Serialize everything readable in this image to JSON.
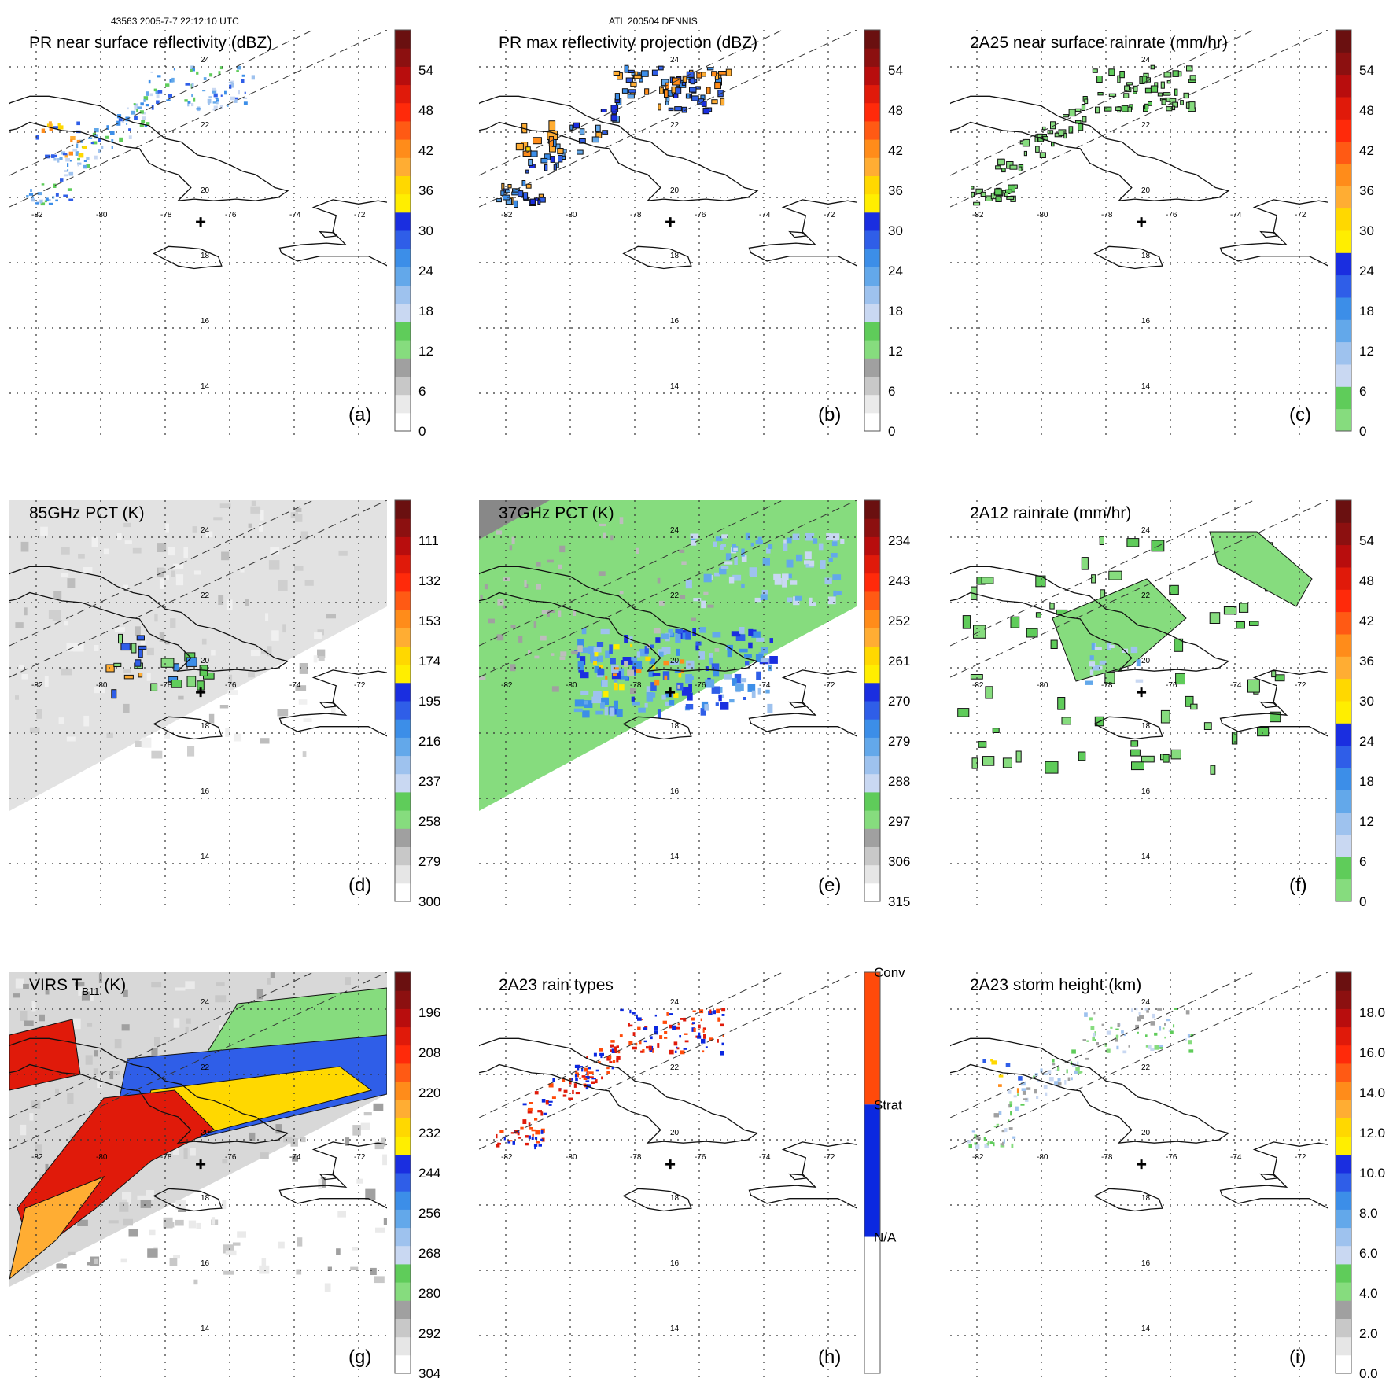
{
  "header": {
    "left": "43563 2005-7-7 22:12:10 UTC",
    "center": "ATL 200504 DENNIS"
  },
  "map": {
    "lon_labels": [
      "-82",
      "-80",
      "-78",
      "-76",
      "-74",
      "-72"
    ],
    "lat_labels": [
      "24",
      "22",
      "20",
      "18",
      "16",
      "14"
    ],
    "storm_center_marker": "cross-icon"
  },
  "panels": [
    {
      "id": "a",
      "title": "PR near surface reflectivity (dBZ)",
      "label": "(a)",
      "colorbar": {
        "ticks": [
          "54",
          "48",
          "42",
          "36",
          "30",
          "24",
          "18",
          "12",
          "6",
          "0"
        ],
        "scale": "reflectivity"
      },
      "field": "pr-swath-cells"
    },
    {
      "id": "b",
      "title": "PR max reflectivity projection (dBZ)",
      "label": "(b)",
      "colorbar": {
        "ticks": [
          "54",
          "48",
          "42",
          "36",
          "30",
          "24",
          "18",
          "12",
          "6",
          "0"
        ],
        "scale": "reflectivity"
      },
      "field": "pr-swath-cells-contoured"
    },
    {
      "id": "c",
      "title": "2A25 near surface rainrate (mm/hr)",
      "label": "(c)",
      "colorbar": {
        "ticks": [
          "54",
          "48",
          "42",
          "36",
          "30",
          "24",
          "18",
          "12",
          "6",
          "0"
        ],
        "scale": "rainrate"
      },
      "field": "pr-swath-green"
    },
    {
      "id": "d",
      "title": "85GHz PCT (K)",
      "label": "(d)",
      "colorbar": {
        "ticks": [
          "111",
          "132",
          "153",
          "174",
          "195",
          "216",
          "237",
          "258",
          "279",
          "300"
        ],
        "scale": "pct"
      },
      "field": "tmi-gray"
    },
    {
      "id": "e",
      "title": "37GHz PCT (K)",
      "label": "(e)",
      "colorbar": {
        "ticks": [
          "234",
          "243",
          "252",
          "261",
          "270",
          "279",
          "288",
          "297",
          "306",
          "315"
        ],
        "scale": "pct"
      },
      "field": "tmi-green"
    },
    {
      "id": "f",
      "title": "2A12 rainrate (mm/hr)",
      "label": "(f)",
      "colorbar": {
        "ticks": [
          "54",
          "48",
          "42",
          "36",
          "30",
          "24",
          "18",
          "12",
          "6",
          "0"
        ],
        "scale": "rainrate"
      },
      "field": "tmi-rain"
    },
    {
      "id": "g",
      "title": "VIRS T",
      "title_sub": "B11",
      "title_tail": " (K)",
      "label": "(g)",
      "colorbar": {
        "ticks": [
          "196",
          "208",
          "220",
          "232",
          "244",
          "256",
          "268",
          "280",
          "292",
          "304"
        ],
        "scale": "pct"
      },
      "field": "virs"
    },
    {
      "id": "h",
      "title": "2A23 rain types",
      "label": "(h)",
      "colorbar": {
        "ticks": [
          "Conv",
          "Strat",
          "N/A"
        ],
        "scale": "types"
      },
      "field": "pr-types"
    },
    {
      "id": "i",
      "title": "2A23 storm height (km)",
      "label": "(i)",
      "colorbar": {
        "ticks": [
          "18.0",
          "16.0",
          "14.0",
          "12.0",
          "10.0",
          "8.0",
          "6.0",
          "4.0",
          "2.0",
          "0.0"
        ],
        "scale": "height"
      },
      "field": "pr-height"
    }
  ],
  "colors": {
    "reflectivity": [
      "#ffffff",
      "#eaeaea",
      "#c8c8c8",
      "#a0a0a0",
      "#86dc7e",
      "#5fcc5a",
      "#c9d8f2",
      "#9ec2ee",
      "#63a8ea",
      "#3c8ee8",
      "#2f5ee8",
      "#1a2ee0",
      "#ffee00",
      "#ffd800",
      "#ffad33",
      "#ff8c1a",
      "#ff5a14",
      "#ff2a0a",
      "#e01a0a",
      "#b80d0d",
      "#8c1010",
      "#6a1010"
    ],
    "rainrate": [
      "#86dc7e",
      "#5fcc5a",
      "#c9d8f2",
      "#9ec2ee",
      "#63a8ea",
      "#3c8ee8",
      "#2f5ee8",
      "#1a2ee0",
      "#ffee00",
      "#ffd800",
      "#ffad33",
      "#ff8c1a",
      "#ff5a14",
      "#ff2a0a",
      "#e01a0a",
      "#b80d0d",
      "#8c1010",
      "#6a1010"
    ],
    "pct": [
      "#ffffff",
      "#e6e6e6",
      "#c8c8c8",
      "#a0a0a0",
      "#86dc7e",
      "#5fcc5a",
      "#c9d8f2",
      "#9ec2ee",
      "#63a8ea",
      "#3c8ee8",
      "#2f5ee8",
      "#1a2ee0",
      "#ffee00",
      "#ffd800",
      "#ffad33",
      "#ff8c1a",
      "#ff5a14",
      "#ff2a0a",
      "#e01a0a",
      "#b80d0d",
      "#8c1010",
      "#6a1010"
    ],
    "height": [
      "#ffffff",
      "#e6e6e6",
      "#c8c8c8",
      "#a0a0a0",
      "#86dc7e",
      "#5fcc5a",
      "#c9d8f2",
      "#9ec2ee",
      "#63a8ea",
      "#3c8ee8",
      "#2f5ee8",
      "#1a2ee0",
      "#ffee00",
      "#ffd800",
      "#ffad33",
      "#ff8c1a",
      "#ff5a14",
      "#ff2a0a",
      "#e01a0a",
      "#b80d0d",
      "#8c1010",
      "#6a1010"
    ],
    "types": [
      "#ffffff",
      "#0b28e0",
      "#ff4a0a"
    ]
  }
}
